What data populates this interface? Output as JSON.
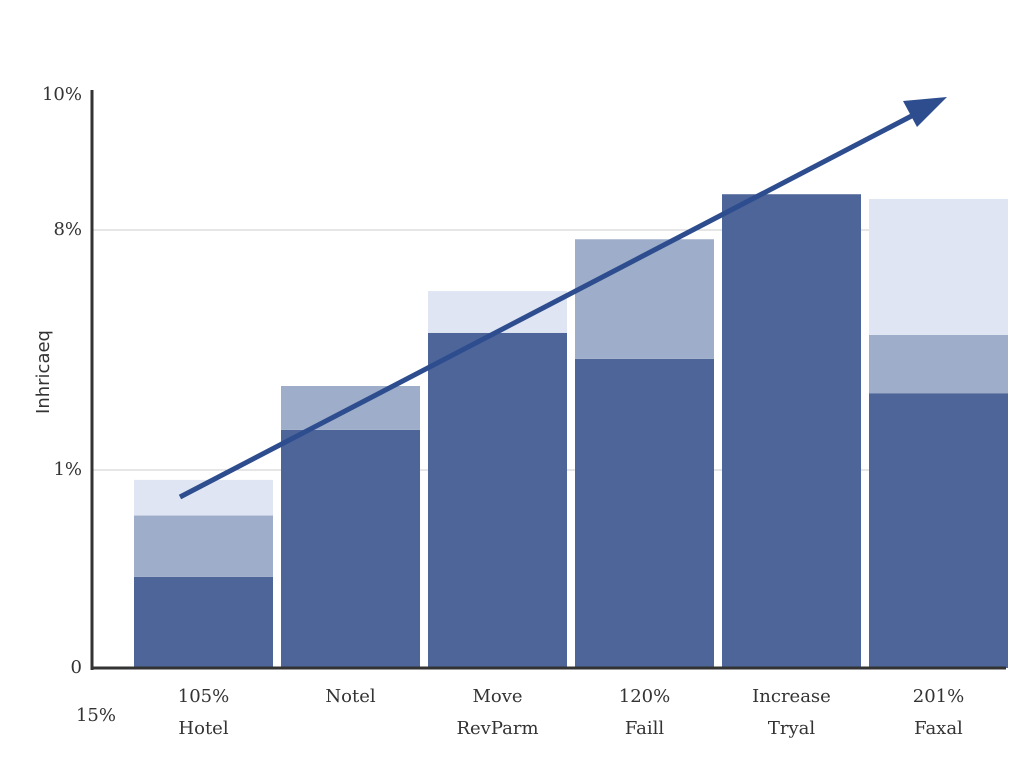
{
  "chart_data": {
    "type": "stacked-bar",
    "y_label": "Inhricaeq",
    "categories": [
      "105%",
      "Notel",
      "Move",
      "120%",
      "Increase",
      "201%"
    ],
    "sublabels": [
      "Hotel",
      null,
      "RevParm",
      "Faill",
      "Tryal",
      "Faxal"
    ],
    "annotation": "15%",
    "series": [
      {
        "color": "#4e6599",
        "values": [
          0.46,
          2.17,
          5.0,
          4.24,
          8.53,
          3.24
        ]
      },
      {
        "color": "#9eadc9",
        "values": [
          0.31,
          1.28,
          0,
          3.49,
          0,
          1.7
        ]
      },
      {
        "color": "#dfe5f2",
        "values": [
          0.18,
          0,
          1.22,
          0,
          0,
          3.52
        ]
      }
    ],
    "ylim": [
      0,
      10
    ],
    "yticks": [
      {
        "value": 0,
        "label": "0"
      },
      {
        "value": 1,
        "label": "1%"
      },
      {
        "value": 8,
        "label": "8%"
      },
      {
        "value": 10,
        "label": "10%"
      }
    ],
    "grid": true
  }
}
